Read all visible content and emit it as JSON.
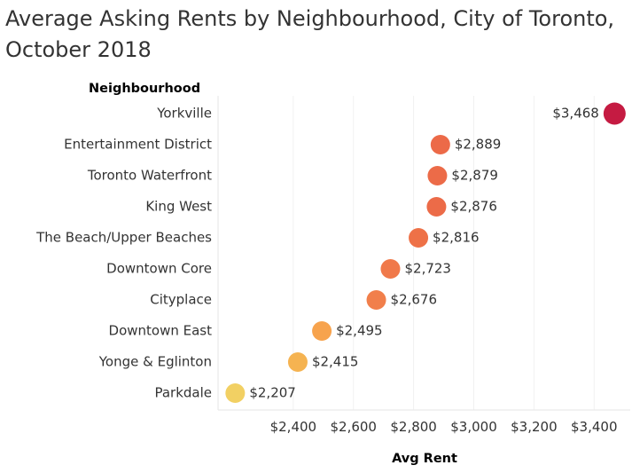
{
  "chart_data": {
    "type": "scatter",
    "title": "Average Asking Rents by Neighbourhood, City of Toronto, October 2018",
    "ylabel": "Neighbourhood",
    "xlabel": "Avg Rent",
    "x_ticks": [
      "$2,400",
      "$2,600",
      "$2,800",
      "$3,000",
      "$3,200",
      "$3,400"
    ],
    "x_tick_values": [
      2400,
      2600,
      2800,
      3000,
      3200,
      3400
    ],
    "xlim": [
      2150,
      3520
    ],
    "grid": "vertical",
    "color_scale": [
      "#f2d063",
      "#f7a34d",
      "#ec7048",
      "#c51b42"
    ],
    "categories": [
      "Yorkville",
      "Entertainment District",
      "Toronto Waterfront",
      "King West",
      "The Beach/Upper Beaches",
      "Downtown Core",
      "Cityplace",
      "Downtown East",
      "Yonge & Eglinton",
      "Parkdale"
    ],
    "values": [
      3468,
      2889,
      2879,
      2876,
      2816,
      2723,
      2676,
      2495,
      2415,
      2207
    ],
    "labels": [
      "$3,468",
      "$2,889",
      "$2,879",
      "$2,876",
      "$2,816",
      "$2,723",
      "$2,676",
      "$2,495",
      "$2,415",
      "$2,207"
    ],
    "colors": [
      "#c51b42",
      "#ec6a48",
      "#ec6b48",
      "#ec6b48",
      "#ee7147",
      "#f0794a",
      "#f17f4b",
      "#f7a34d",
      "#f5b351",
      "#f2d063"
    ]
  }
}
